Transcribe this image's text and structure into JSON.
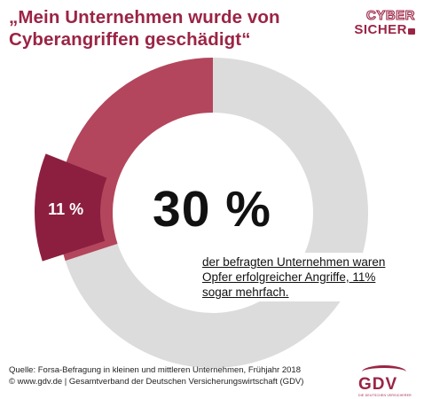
{
  "title": "„Mein Unternehmen wurde von Cyberangriffen geschädigt“",
  "logo": {
    "line1": "CYBER",
    "line2": "SICHER"
  },
  "colors": {
    "accent": "#9b2445",
    "segment_total": "#b3465c",
    "segment_multiple": "#8c1f40",
    "remainder": "#dcdcdc"
  },
  "chart_data": {
    "type": "pie",
    "variant": "donut",
    "slices": [
      {
        "label": "30 %",
        "value": 30
      },
      {
        "label": "11 %",
        "value": 11
      }
    ],
    "remainder_value": 70,
    "main_label": "30 %",
    "slice_label": "11 %",
    "annotation": "der befragten Unternehmen waren Opfer erfolgreicher Angriffe, 11% sogar mehrfach."
  },
  "footer": {
    "line1": "Quelle: Forsa-Befragung in kleinen und mittleren Unternehmen, Frühjahr 2018",
    "line2": "© www.gdv.de | Gesamtverband der Deutschen Versicherungswirtschaft (GDV)"
  },
  "gdv_logo": {
    "word": "GDV",
    "sub": "DIE DEUTSCHEN VERSICHERER"
  }
}
